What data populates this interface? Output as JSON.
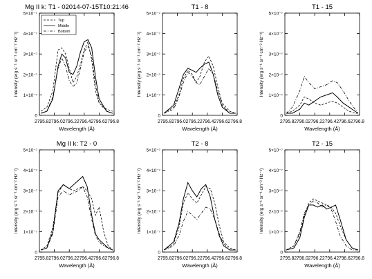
{
  "figure": {
    "colors": {
      "axis": "#000000",
      "line": "#000000",
      "background": "#ffffff"
    },
    "legend": {
      "placement": "top-left",
      "entries": [
        {
          "label": "Top",
          "style": "dashed"
        },
        {
          "label": "Middle",
          "style": "solid"
        },
        {
          "label": "Bottom",
          "style": "dash-dot"
        }
      ]
    }
  },
  "chart_data": [
    {
      "type": "line",
      "title": "Mg II k: T1 - 02014-07-15T10:21:46",
      "xlabel": "Wavelength (Å)",
      "ylabel": "Intensity (erg s⁻¹ sr⁻¹ cm⁻² Hz⁻¹)",
      "xlim": [
        2795.8,
        2796.8
      ],
      "ylim": [
        0,
        5e-07
      ],
      "x_ticks": [
        "2795.8",
        "2796.0",
        "2796.2",
        "2796.4",
        "2796.6",
        "2796.8"
      ],
      "y_ticks": [
        "0",
        "1×10⁻⁷",
        "2×10⁻⁷",
        "3×10⁻⁷",
        "4×10⁻⁷",
        "5×10⁻⁷"
      ],
      "legend": true,
      "series": [
        {
          "style": "dashed",
          "x": [
            2795.82,
            2795.9,
            2795.98,
            2796.05,
            2796.1,
            2796.15,
            2796.2,
            2796.25,
            2796.3,
            2796.35,
            2796.4,
            2796.45,
            2796.5,
            2796.55,
            2796.6,
            2796.7,
            2796.78
          ],
          "y": [
            2e-08,
            4e-08,
            1.2e-07,
            3.2e-07,
            3.3e-07,
            3e-07,
            2.3e-07,
            1.6e-07,
            1.9e-07,
            2.5e-07,
            3.2e-07,
            3.6e-07,
            2.7e-07,
            1.2e-07,
            6e-08,
            3e-08,
            2e-08
          ]
        },
        {
          "style": "solid",
          "x": [
            2795.82,
            2795.9,
            2795.98,
            2796.05,
            2796.1,
            2796.15,
            2796.2,
            2796.25,
            2796.3,
            2796.35,
            2796.4,
            2796.45,
            2796.5,
            2796.55,
            2796.6,
            2796.7,
            2796.78
          ],
          "y": [
            1e-08,
            2e-08,
            8e-08,
            2.4e-07,
            3e-07,
            2.8e-07,
            2.1e-07,
            2e-07,
            2.4e-07,
            3.1e-07,
            3.6e-07,
            3.7e-07,
            3.3e-07,
            1.9e-07,
            8e-08,
            2e-08,
            1e-08
          ]
        },
        {
          "style": "dash-dot",
          "x": [
            2795.82,
            2795.9,
            2795.98,
            2796.05,
            2796.1,
            2796.15,
            2796.2,
            2796.25,
            2796.3,
            2796.35,
            2796.4,
            2796.45,
            2796.5,
            2796.55,
            2796.6,
            2796.7,
            2796.78
          ],
          "y": [
            1e-08,
            2e-08,
            9e-08,
            2.3e-07,
            2.8e-07,
            2.4e-07,
            1.7e-07,
            1.4e-07,
            1.6e-07,
            2.3e-07,
            3.1e-07,
            3.4e-07,
            2.9e-07,
            1.5e-07,
            6e-08,
            2e-08,
            1e-08
          ]
        }
      ]
    },
    {
      "type": "line",
      "title": "T1 - 8",
      "xlabel": "Wavelength (Å)",
      "ylabel": "Intensity (erg s⁻¹ sr⁻¹ cm⁻² Hz⁻¹)",
      "xlim": [
        2795.8,
        2796.8
      ],
      "ylim": [
        0,
        5e-07
      ],
      "x_ticks": [
        "2795.8",
        "2796.0",
        "2796.2",
        "2796.4",
        "2796.6",
        "2796.8"
      ],
      "y_ticks": [
        "0",
        "1×10⁻⁷",
        "2×10⁻⁷",
        "3×10⁻⁷",
        "4×10⁻⁷",
        "5×10⁻⁷"
      ],
      "series": [
        {
          "style": "dashed",
          "x": [
            2795.82,
            2795.95,
            2796.02,
            2796.08,
            2796.14,
            2796.2,
            2796.25,
            2796.3,
            2796.36,
            2796.42,
            2796.48,
            2796.54,
            2796.6,
            2796.7,
            2796.78
          ],
          "y": [
            1e-08,
            4e-08,
            1e-07,
            1.8e-07,
            2.2e-07,
            2e-07,
            1.6e-07,
            1.9e-07,
            2.6e-07,
            2.9e-07,
            2.4e-07,
            1.4e-07,
            6e-08,
            2e-08,
            1e-08
          ]
        },
        {
          "style": "solid",
          "x": [
            2795.82,
            2795.95,
            2796.02,
            2796.08,
            2796.14,
            2796.2,
            2796.25,
            2796.3,
            2796.36,
            2796.42,
            2796.48,
            2796.54,
            2796.6,
            2796.7,
            2796.78
          ],
          "y": [
            1e-08,
            5e-08,
            1.3e-07,
            2e-07,
            2.3e-07,
            2.2e-07,
            2.1e-07,
            2.3e-07,
            2.5e-07,
            2.6e-07,
            2e-07,
            1e-07,
            4e-08,
            1e-08,
            1e-08
          ]
        },
        {
          "style": "dash-dot",
          "x": [
            2795.82,
            2795.95,
            2796.02,
            2796.08,
            2796.14,
            2796.2,
            2796.25,
            2796.3,
            2796.36,
            2796.42,
            2796.48,
            2796.54,
            2796.6,
            2796.7,
            2796.78
          ],
          "y": [
            1e-08,
            3e-08,
            9e-08,
            1.6e-07,
            2.1e-07,
            1.9e-07,
            1.6e-07,
            1.5e-07,
            1.9e-07,
            2.3e-07,
            2e-07,
            1.2e-07,
            5e-08,
            1e-08,
            1e-08
          ]
        }
      ]
    },
    {
      "type": "line",
      "title": "T1 - 15",
      "xlabel": "Wavelength (Å)",
      "ylabel": "Intensity (erg s⁻¹ sr⁻¹ cm⁻² Hz⁻¹)",
      "xlim": [
        2795.8,
        2796.8
      ],
      "ylim": [
        0,
        5e-07
      ],
      "x_ticks": [
        "2795.8",
        "2796.0",
        "2796.2",
        "2796.4",
        "2796.6",
        "2796.8"
      ],
      "y_ticks": [
        "0",
        "1×10⁻⁷",
        "2×10⁻⁷",
        "3×10⁻⁷",
        "4×10⁻⁷",
        "5×10⁻⁷"
      ],
      "series": [
        {
          "style": "dashed",
          "x": [
            2795.82,
            2795.9,
            2796.0,
            2796.06,
            2796.12,
            2796.2,
            2796.28,
            2796.36,
            2796.44,
            2796.5,
            2796.58,
            2796.66,
            2796.74,
            2796.78
          ],
          "y": [
            1e-08,
            2e-08,
            5e-08,
            9e-08,
            8e-08,
            6e-08,
            5e-08,
            6e-08,
            7e-08,
            6e-08,
            4e-08,
            2e-08,
            1e-08,
            1e-08
          ]
        },
        {
          "style": "solid",
          "x": [
            2795.82,
            2795.9,
            2796.0,
            2796.06,
            2796.12,
            2796.2,
            2796.28,
            2796.36,
            2796.44,
            2796.5,
            2796.58,
            2796.66,
            2796.74,
            2796.78
          ],
          "y": [
            1e-08,
            1e-08,
            3e-08,
            6e-08,
            5e-08,
            7e-08,
            9e-08,
            1e-07,
            1.1e-07,
            9e-08,
            6e-08,
            4e-08,
            2e-08,
            1e-08
          ]
        },
        {
          "style": "dash-dot",
          "x": [
            2795.82,
            2795.9,
            2796.0,
            2796.06,
            2796.12,
            2796.2,
            2796.28,
            2796.36,
            2796.44,
            2796.5,
            2796.58,
            2796.66,
            2796.74,
            2796.78
          ],
          "y": [
            1e-08,
            4e-08,
            1.2e-07,
            1.9e-07,
            1.6e-07,
            1.3e-07,
            1.4e-07,
            1.5e-07,
            1.7e-07,
            1.6e-07,
            1.2e-07,
            7e-08,
            3e-08,
            1e-08
          ]
        }
      ]
    },
    {
      "type": "line",
      "title": "Mg II k: T2 - 0",
      "xlabel": "Wavelength (Å)",
      "ylabel": "Intensity (erg s⁻¹ sr⁻¹ cm⁻² Hz⁻¹)",
      "xlim": [
        2795.8,
        2796.8
      ],
      "ylim": [
        0,
        5e-07
      ],
      "x_ticks": [
        "2795.8",
        "2796.0",
        "2796.2",
        "2796.4",
        "2796.6",
        "2796.8"
      ],
      "y_ticks": [
        "0",
        "1×10⁻⁷",
        "2×10⁻⁷",
        "3×10⁻⁷",
        "4×10⁻⁷",
        "5×10⁻⁷"
      ],
      "series": [
        {
          "style": "dashed",
          "x": [
            2795.82,
            2795.9,
            2795.98,
            2796.05,
            2796.12,
            2796.2,
            2796.26,
            2796.32,
            2796.38,
            2796.44,
            2796.5,
            2796.55,
            2796.6,
            2796.66,
            2796.72,
            2796.78
          ],
          "y": [
            1e-08,
            3e-08,
            1.2e-07,
            2.9e-07,
            3.3e-07,
            3.1e-07,
            3e-07,
            3.1e-07,
            3.2e-07,
            3e-07,
            2.6e-07,
            1.8e-07,
            2.2e-07,
            1e-07,
            3e-08,
            1e-08
          ]
        },
        {
          "style": "solid",
          "x": [
            2795.82,
            2795.9,
            2795.98,
            2796.05,
            2796.12,
            2796.2,
            2796.26,
            2796.32,
            2796.38,
            2796.44,
            2796.5,
            2796.55,
            2796.6,
            2796.66,
            2796.72,
            2796.78
          ],
          "y": [
            1e-08,
            2e-08,
            1e-07,
            3e-07,
            3.3e-07,
            3.1e-07,
            3.3e-07,
            3.5e-07,
            3.7e-07,
            3.2e-07,
            1.8e-07,
            9e-08,
            6e-08,
            4e-08,
            2e-08,
            1e-08
          ]
        },
        {
          "style": "dash-dot",
          "x": [
            2795.82,
            2795.9,
            2795.98,
            2796.05,
            2796.12,
            2796.2,
            2796.26,
            2796.32,
            2796.38,
            2796.44,
            2796.5,
            2796.55,
            2796.6,
            2796.66,
            2796.72,
            2796.78
          ],
          "y": [
            1e-08,
            2e-08,
            9e-08,
            2.7e-07,
            3e-07,
            2.8e-07,
            2.9e-07,
            3e-07,
            3.2e-07,
            2.7e-07,
            1.6e-07,
            8e-08,
            5e-08,
            3e-08,
            2e-08,
            1e-08
          ]
        }
      ]
    },
    {
      "type": "line",
      "title": "T2 - 8",
      "xlabel": "Wavelength (Å)",
      "ylabel": "Intensity (erg s⁻¹ sr⁻¹ cm⁻² Hz⁻¹)",
      "xlim": [
        2795.8,
        2796.8
      ],
      "ylim": [
        0,
        5e-07
      ],
      "x_ticks": [
        "2795.8",
        "2796.0",
        "2796.2",
        "2796.4",
        "2796.6",
        "2796.8"
      ],
      "y_ticks": [
        "0",
        "1×10⁻⁷",
        "2×10⁻⁷",
        "3×10⁻⁷",
        "4×10⁻⁷",
        "5×10⁻⁷"
      ],
      "series": [
        {
          "style": "dashed",
          "x": [
            2795.82,
            2795.95,
            2796.02,
            2796.08,
            2796.14,
            2796.2,
            2796.26,
            2796.32,
            2796.38,
            2796.44,
            2796.5,
            2796.56,
            2796.62,
            2796.7,
            2796.78
          ],
          "y": [
            1e-08,
            4e-08,
            1.2e-07,
            2.4e-07,
            2.9e-07,
            2.6e-07,
            2.4e-07,
            2.8e-07,
            3.2e-07,
            3.1e-07,
            2.4e-07,
            1.3e-07,
            5e-08,
            2e-08,
            1e-08
          ]
        },
        {
          "style": "solid",
          "x": [
            2795.82,
            2795.95,
            2796.02,
            2796.08,
            2796.14,
            2796.2,
            2796.26,
            2796.32,
            2796.38,
            2796.44,
            2796.5,
            2796.56,
            2796.62,
            2796.7,
            2796.78
          ],
          "y": [
            1e-08,
            5e-08,
            1.4e-07,
            2.6e-07,
            3.4e-07,
            3e-07,
            2.7e-07,
            3.1e-07,
            3.3e-07,
            2.7e-07,
            1.6e-07,
            8e-08,
            3e-08,
            1e-08,
            1e-08
          ]
        },
        {
          "style": "dash-dot",
          "x": [
            2795.82,
            2795.95,
            2796.02,
            2796.08,
            2796.14,
            2796.2,
            2796.26,
            2796.32,
            2796.38,
            2796.44,
            2796.5,
            2796.56,
            2796.62,
            2796.7,
            2796.78
          ],
          "y": [
            1e-08,
            3e-08,
            8e-08,
            1.5e-07,
            2e-07,
            1.8e-07,
            1.6e-07,
            1.9e-07,
            2.2e-07,
            2.1e-07,
            1.6e-07,
            9e-08,
            4e-08,
            1e-08,
            1e-08
          ]
        }
      ]
    },
    {
      "type": "line",
      "title": "T2 - 15",
      "xlabel": "Wavelength (Å)",
      "ylabel": "Intensity (erg s⁻¹ sr⁻¹ cm⁻² Hz⁻¹)",
      "xlim": [
        2795.8,
        2796.8
      ],
      "ylim": [
        0,
        5e-07
      ],
      "x_ticks": [
        "2795.8",
        "2796.0",
        "2796.2",
        "2796.4",
        "2796.6",
        "2796.8"
      ],
      "y_ticks": [
        "0",
        "1×10⁻⁷",
        "2×10⁻⁷",
        "3×10⁻⁷",
        "4×10⁻⁷",
        "5×10⁻⁷"
      ],
      "series": [
        {
          "style": "dashed",
          "x": [
            2795.82,
            2795.92,
            2796.0,
            2796.06,
            2796.12,
            2796.18,
            2796.24,
            2796.3,
            2796.36,
            2796.42,
            2796.48,
            2796.54,
            2796.62,
            2796.7,
            2796.78
          ],
          "y": [
            1e-08,
            3e-08,
            9e-08,
            1.8e-07,
            2.4e-07,
            2.6e-07,
            2.5e-07,
            2.4e-07,
            2.3e-07,
            2.2e-07,
            1.9e-07,
            1.3e-07,
            6e-08,
            2e-08,
            1e-08
          ]
        },
        {
          "style": "solid",
          "x": [
            2795.82,
            2795.92,
            2796.0,
            2796.06,
            2796.12,
            2796.18,
            2796.24,
            2796.3,
            2796.36,
            2796.42,
            2796.48,
            2796.54,
            2796.62,
            2796.7,
            2796.78
          ],
          "y": [
            1e-08,
            2e-08,
            7e-08,
            1.7e-07,
            2.3e-07,
            2.3e-07,
            2.2e-07,
            2.3e-07,
            2.1e-07,
            2.2e-07,
            2.3e-07,
            1.6e-07,
            6e-08,
            2e-08,
            1e-08
          ]
        },
        {
          "style": "dash-dot",
          "x": [
            2795.82,
            2795.92,
            2796.0,
            2796.06,
            2796.12,
            2796.18,
            2796.24,
            2796.3,
            2796.36,
            2796.42,
            2796.48,
            2796.54,
            2796.62,
            2796.7,
            2796.78
          ],
          "y": [
            1e-08,
            3e-08,
            1e-07,
            1.9e-07,
            2.3e-07,
            2.5e-07,
            2.4e-07,
            2.2e-07,
            2.3e-07,
            2.1e-07,
            1.5e-07,
            8e-08,
            3e-08,
            1e-08,
            1e-08
          ]
        }
      ]
    }
  ]
}
